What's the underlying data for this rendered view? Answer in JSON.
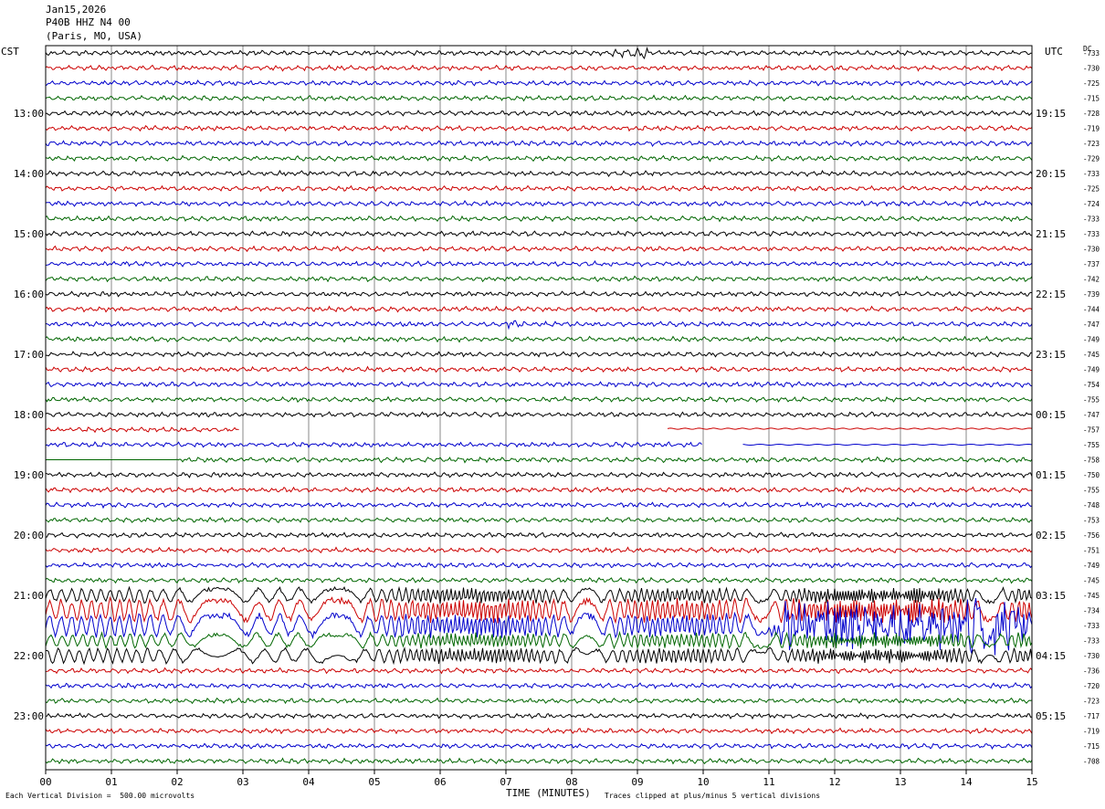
{
  "header": {
    "date": "Jan15,2026",
    "station": "P40B HHZ N4 00",
    "location": "(Paris, MO, USA)"
  },
  "left_tz": "CST",
  "right_tz": "UTC",
  "dc_label": "DC",
  "footer": {
    "scale": "Each Vertical Division =  500.00 microvolts",
    "xlabel": "TIME (MINUTES)",
    "clip": "Traces clipped at plus/minus 5 vertical divisions"
  },
  "chart_data": {
    "type": "line",
    "title": "",
    "xlabel": "TIME (MINUTES)",
    "x_ticks": [
      "00",
      "01",
      "02",
      "03",
      "04",
      "05",
      "06",
      "07",
      "08",
      "09",
      "10",
      "11",
      "12",
      "13",
      "14",
      "15"
    ],
    "xlim": [
      0,
      15
    ],
    "n_traces": 48,
    "trace_colors": [
      "#000000",
      "#cc0000",
      "#0000cc",
      "#006600"
    ],
    "left_hour_labels": [
      "13:00",
      "14:00",
      "15:00",
      "16:00",
      "17:00",
      "18:00",
      "19:00",
      "20:00",
      "21:00",
      "22:00",
      "23:00"
    ],
    "right_hour_labels": [
      "19:15",
      "20:15",
      "21:15",
      "22:15",
      "23:15",
      "00:15",
      "01:15",
      "02:15",
      "03:15",
      "04:15",
      "05:15"
    ],
    "hour_label_first_trace": 4,
    "dc_offsets": [
      "-733",
      "-730",
      "-725",
      "-715",
      "-728",
      "-719",
      "-723",
      "-729",
      "-733",
      "-725",
      "-724",
      "-733",
      "-733",
      "-730",
      "-737",
      "-742",
      "-739",
      "-744",
      "-747",
      "-749",
      "-745",
      "-749",
      "-754",
      "-755",
      "-747",
      "-757",
      "-755",
      "-758",
      "-750",
      "-755",
      "-748",
      "-753",
      "-756",
      "-751",
      "-749",
      "-745",
      "-745",
      "-734",
      "-733",
      "-733",
      "-730",
      "-736",
      "-720",
      "-723",
      "-717",
      "-719",
      "-715",
      "-708"
    ],
    "events": [
      {
        "trace": 0,
        "x_minutes": [
          8.6,
          9.2
        ],
        "note": "small local burst"
      },
      {
        "trace": 18,
        "x_minutes": [
          7.0,
          7.3
        ]
      },
      {
        "trace": 36,
        "x_minutes": [
          0.0,
          15.0
        ],
        "note": "large teleseismic arrival, traces clipped"
      }
    ],
    "data_gaps": [
      {
        "trace": 25,
        "x_minutes": [
          2.95,
          9.45
        ]
      },
      {
        "trace": 26,
        "x_minutes": [
          10.0,
          10.6
        ]
      }
    ],
    "grid": true
  }
}
